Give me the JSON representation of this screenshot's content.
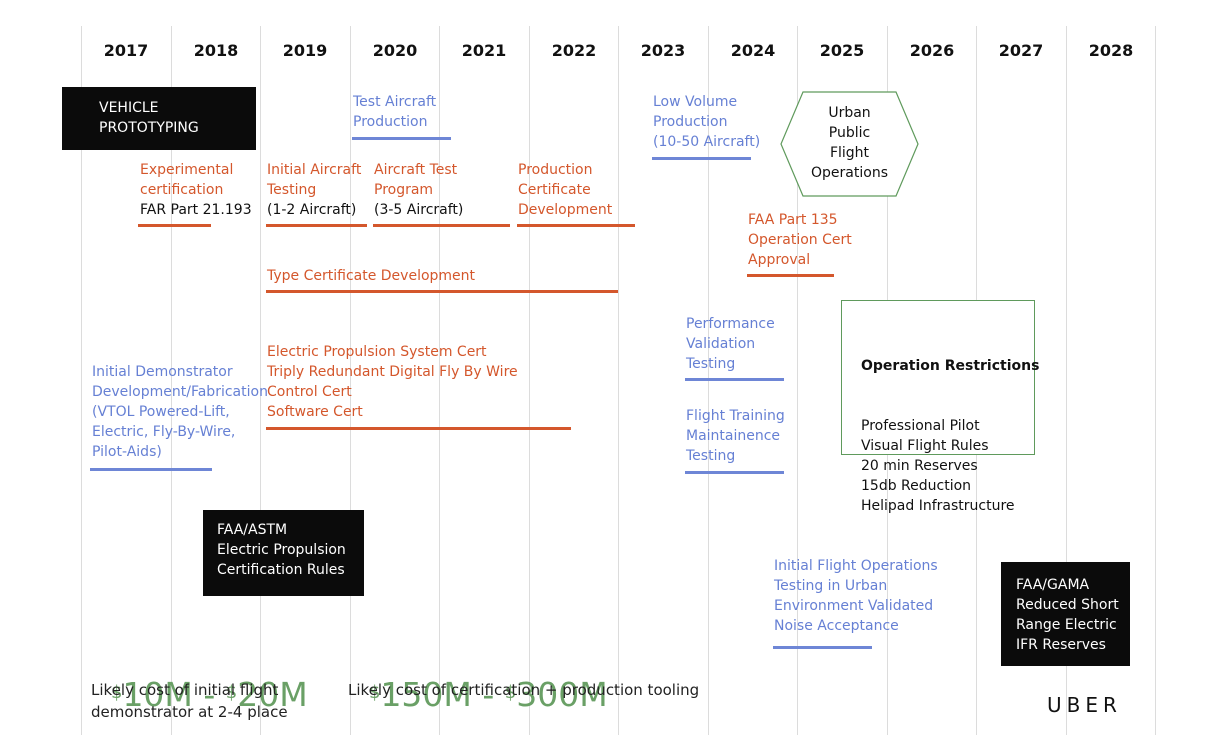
{
  "years": [
    "2017",
    "2018",
    "2019",
    "2020",
    "2021",
    "2022",
    "2023",
    "2024",
    "2025",
    "2026",
    "2027",
    "2028"
  ],
  "vehicle_prototyping": "VEHICLE\nPROTOTYPING",
  "test_aircraft_production": "Test Aircraft\nProduction",
  "low_volume_production": "Low Volume\nProduction\n(10-50 Aircraft)",
  "urban_public_flight_operations": "Urban\nPublic\nFlight\nOperations",
  "experimental_certification": {
    "label": "Experimental\ncertification",
    "sub": "FAR Part 21.193"
  },
  "initial_aircraft_testing": {
    "label": "Initial Aircraft\nTesting",
    "sub": "(1-2 Aircraft)"
  },
  "aircraft_test_program": {
    "label": "Aircraft Test\nProgram",
    "sub": "(3-5 Aircraft)"
  },
  "production_certificate_development": "Production\nCertificate\nDevelopment",
  "faa_part_135": "FAA Part 135\nOperation Cert\nApproval",
  "type_certificate_development": "Type Certificate Development",
  "performance_validation_testing": "Performance\nValidation\nTesting",
  "operation_restrictions": {
    "title": "Operation Restrictions",
    "items": "Professional Pilot\nVisual Flight Rules\n20 min Reserves\n15db Reduction\nHelipad Infrastructure"
  },
  "electric_propulsion_certs": "Electric Propulsion System Cert\nTriply Redundant Digital Fly By Wire\nControl Cert\nSoftware Cert",
  "initial_demonstrator": "Initial Demonstrator\nDevelopment/Fabrication\n(VTOL Powered-Lift,\nElectric, Fly-By-Wire,\nPilot-Aids)",
  "flight_training_maintainence": "Flight Training\nMaintainence\nTesting",
  "faa_astm": "FAA/ASTM\nElectric Propulsion\nCertification Rules",
  "initial_flight_operations": "Initial Flight Operations\nTesting in Urban\nEnvironment Validated\nNoise Acceptance",
  "faa_gama": "FAA/GAMA\nReduced Short\nRange Electric\nIFR Reserves",
  "cost_demonstrator": {
    "low_currency": "$",
    "low_value": "10M",
    "separator": " - ",
    "high_currency": "$",
    "high_value": "20M",
    "description": "Likely cost of initial flight\ndemonstrator at 2-4 place"
  },
  "cost_certification": {
    "low_currency": "$",
    "low_value": "150M",
    "separator": " - ",
    "high_currency": "$",
    "high_value": "300M",
    "description": "Likely cost of certification + production tooling"
  },
  "logo": "UBER",
  "colors": {
    "regulatory": "#d4572c",
    "development": "#6680d4",
    "cost": "#6aa066",
    "restrictions_border": "#5f9a5c",
    "callout_box": "#0b0b0b"
  }
}
